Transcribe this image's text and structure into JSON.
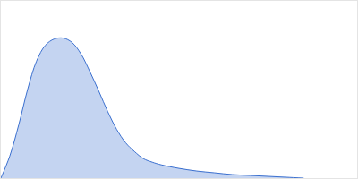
{
  "chart_data": {
    "type": "area",
    "color": "#3a6fcf",
    "x": [
      0,
      10,
      20,
      30,
      40,
      50,
      60,
      70,
      80,
      90,
      100,
      110,
      120,
      130,
      140,
      150,
      160,
      170,
      180,
      200,
      220,
      240,
      260,
      280,
      300,
      320,
      340
    ],
    "values": [
      0,
      25,
      60,
      100,
      132,
      150,
      157,
      158,
      153,
      140,
      120,
      98,
      75,
      55,
      40,
      30,
      22,
      18,
      15,
      11,
      8,
      6,
      4,
      3,
      2,
      1,
      0
    ],
    "xlim": [
      0,
      400
    ],
    "ylim": [
      0,
      200
    ],
    "grid": false,
    "tick_labels": false
  }
}
